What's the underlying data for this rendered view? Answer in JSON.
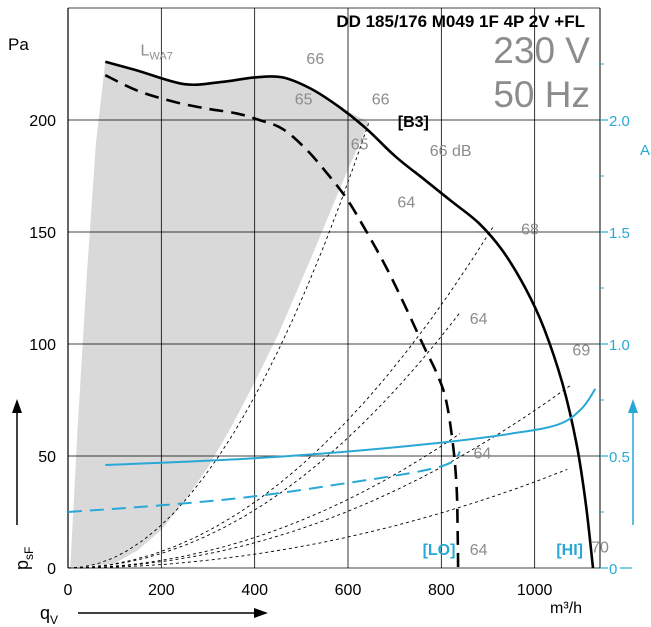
{
  "chart_data": {
    "type": "line",
    "title": "DD 185/176 M049 1F 4P 2V +FL",
    "voltage": "230 V",
    "frequency": "50 Hz",
    "y_label": "Pa",
    "y_side_label": "p",
    "y_side_label_sub": "sF",
    "x_label": "q",
    "x_label_sub": "V",
    "x_unit": "m³/h",
    "y2_label": "A",
    "xlim": [
      0,
      1140
    ],
    "ylim": [
      0,
      250
    ],
    "y2lim": [
      0,
      2.5
    ],
    "x_ticks": [
      "0",
      "200",
      "400",
      "600",
      "800",
      "1000"
    ],
    "y_ticks": [
      "0",
      "50",
      "100",
      "150",
      "200"
    ],
    "y2_ticks": [
      "0",
      "0.5",
      "1.0",
      "1.5",
      "2.0"
    ],
    "grid": true,
    "colors": {
      "pressure": "#000000",
      "current": "#29a8d6",
      "area": "#d9d9d9",
      "label_gray": "#8c8c8c"
    },
    "series": [
      {
        "name": "[HI]",
        "kind": "pressure",
        "points": [
          [
            80,
            226
          ],
          [
            150,
            222
          ],
          [
            250,
            216
          ],
          [
            330,
            217
          ],
          [
            400,
            219
          ],
          [
            460,
            219
          ],
          [
            520,
            214
          ],
          [
            580,
            206
          ],
          [
            640,
            196
          ],
          [
            700,
            184
          ],
          [
            760,
            174
          ],
          [
            820,
            164
          ],
          [
            880,
            154
          ],
          [
            930,
            142
          ],
          [
            980,
            125
          ],
          [
            1020,
            107
          ],
          [
            1060,
            82
          ],
          [
            1090,
            55
          ],
          [
            1110,
            28
          ],
          [
            1125,
            0
          ]
        ]
      },
      {
        "name": "[LO]",
        "kind": "pressure",
        "points": [
          [
            80,
            220
          ],
          [
            150,
            213
          ],
          [
            230,
            208
          ],
          [
            300,
            205
          ],
          [
            360,
            203
          ],
          [
            410,
            200
          ],
          [
            460,
            196
          ],
          [
            510,
            187
          ],
          [
            560,
            175
          ],
          [
            600,
            164
          ],
          [
            640,
            150
          ],
          [
            680,
            135
          ],
          [
            720,
            118
          ],
          [
            760,
            100
          ],
          [
            790,
            87
          ],
          [
            810,
            75
          ],
          [
            825,
            55
          ],
          [
            833,
            35
          ],
          [
            835,
            15
          ],
          [
            836,
            0
          ]
        ]
      },
      {
        "name": "[HI]",
        "kind": "current",
        "points": [
          [
            80,
            0.46
          ],
          [
            200,
            0.47
          ],
          [
            400,
            0.49
          ],
          [
            600,
            0.52
          ],
          [
            800,
            0.56
          ],
          [
            950,
            0.6
          ],
          [
            1050,
            0.64
          ],
          [
            1100,
            0.71
          ],
          [
            1130,
            0.8
          ]
        ]
      },
      {
        "name": "[LO]",
        "kind": "current",
        "points": [
          [
            0,
            0.25
          ],
          [
            200,
            0.28
          ],
          [
            400,
            0.32
          ],
          [
            600,
            0.38
          ],
          [
            750,
            0.43
          ],
          [
            820,
            0.47
          ],
          [
            840,
            0.52
          ]
        ]
      }
    ],
    "operating_area": [
      [
        80,
        226
      ],
      [
        150,
        222
      ],
      [
        250,
        216
      ],
      [
        330,
        217
      ],
      [
        400,
        219
      ],
      [
        460,
        219
      ],
      [
        520,
        214
      ],
      [
        580,
        206
      ],
      [
        645,
        199
      ],
      [
        600,
        178
      ],
      [
        520,
        138
      ],
      [
        450,
        104
      ],
      [
        400,
        83
      ],
      [
        350,
        63
      ],
      [
        300,
        45
      ],
      [
        250,
        30
      ],
      [
        200,
        17
      ],
      [
        150,
        8
      ],
      [
        100,
        2
      ],
      [
        5,
        0
      ],
      [
        20,
        60
      ],
      [
        40,
        130
      ],
      [
        60,
        190
      ]
    ],
    "system_curves": [
      {
        "x_end": 645,
        "y_end": 199
      },
      {
        "x_end": 910,
        "y_end": 152
      },
      {
        "x_end": 840,
        "y_end": 114
      },
      {
        "x_end": 1080,
        "y_end": 82
      },
      {
        "x_end": 840,
        "y_end": 60
      },
      {
        "x_end": 1070,
        "y_end": 44
      }
    ],
    "annotations": [
      {
        "text": "L",
        "sub": "WA7",
        "x": 190,
        "y": 228
      },
      {
        "text": "66",
        "x": 530,
        "y": 224
      },
      {
        "text": "65",
        "x": 505,
        "y": 206
      },
      {
        "text": "66",
        "x": 670,
        "y": 206
      },
      {
        "text": "[B3]",
        "x": 740,
        "y": 196,
        "style": "black"
      },
      {
        "text": "65",
        "x": 625,
        "y": 186
      },
      {
        "text": "66 dB",
        "x": 820,
        "y": 183
      },
      {
        "text": "64",
        "x": 725,
        "y": 160
      },
      {
        "text": "68",
        "x": 990,
        "y": 148
      },
      {
        "text": "64",
        "x": 880,
        "y": 108
      },
      {
        "text": "69",
        "x": 1100,
        "y": 94
      },
      {
        "text": "64",
        "x": 888,
        "y": 48
      },
      {
        "text": "[LO]",
        "x": 795,
        "y": 5,
        "style": "blue"
      },
      {
        "text": "64",
        "x": 880,
        "y": 5
      },
      {
        "text": "[HI]",
        "x": 1075,
        "y": 5,
        "style": "blue"
      },
      {
        "text": "70",
        "x": 1140,
        "y": 6
      }
    ]
  }
}
